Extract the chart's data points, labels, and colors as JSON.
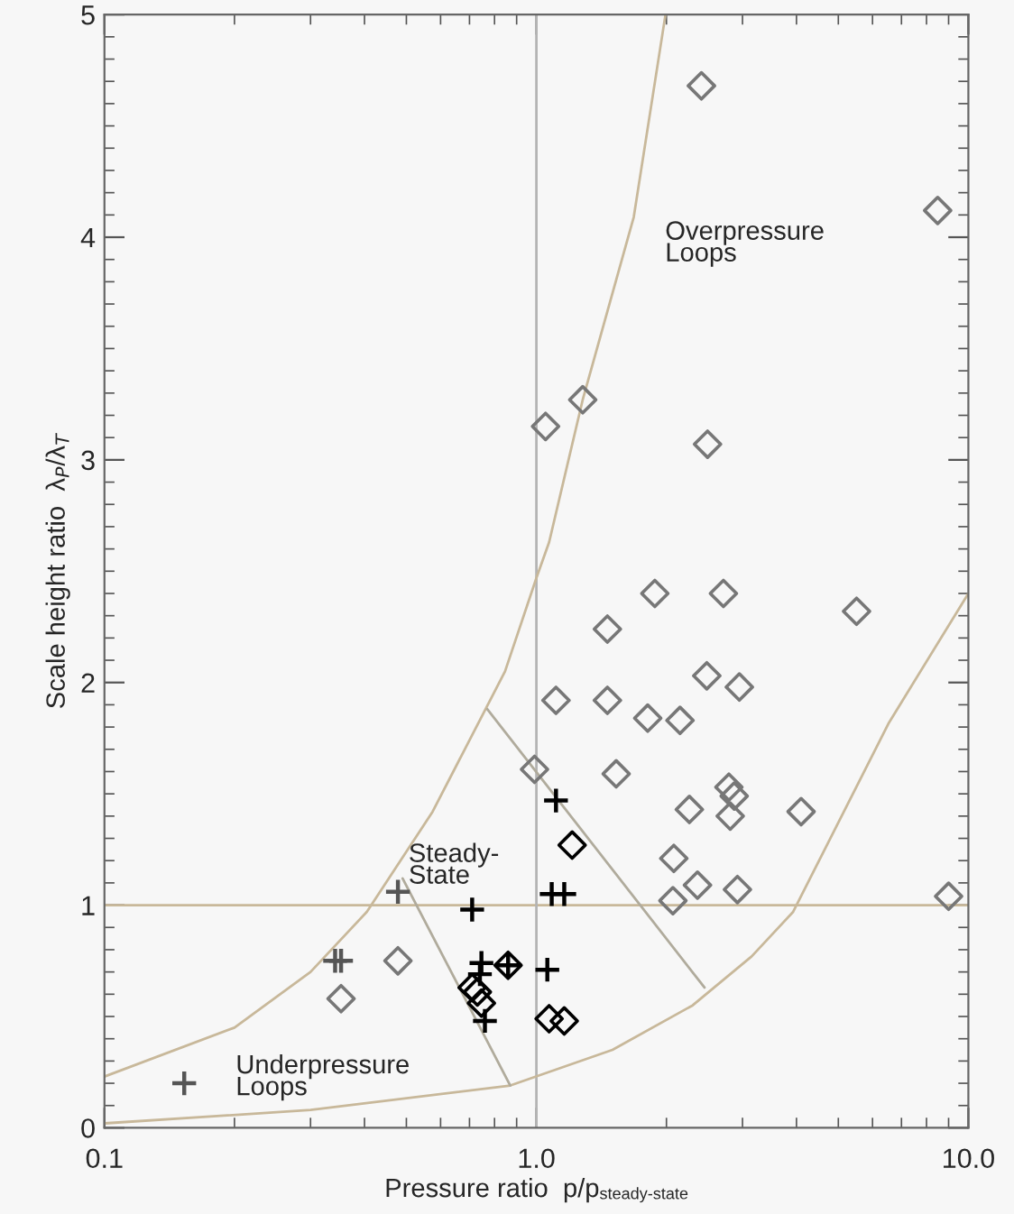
{
  "chart_data": {
    "type": "scatter",
    "xlabel": "Pressure ratio  p/p$_{steady-state}$",
    "ylabel": "Scale height ratio  λ$_{P}$/λ$_{T}$",
    "log": "x",
    "xlim": [
      0.1,
      10
    ],
    "xticks": [
      0.1,
      {
        "value": 1,
        "label": "1.0"
      },
      {
        "value": 10,
        "label": "10.0"
      }
    ],
    "ylim": [
      0,
      5
    ],
    "yticks": [
      0,
      1,
      2,
      3,
      4,
      5
    ],
    "grid": false,
    "legend": false,
    "series": [
      {
        "type": "scatter",
        "marker": "diamond",
        "color": "#777777",
        "x": [
          2.41,
          8.49,
          1.05,
          1.28,
          2.49,
          1.88,
          2.71,
          5.51,
          1.46,
          2.48,
          2.95,
          1.11,
          1.46,
          1.81,
          2.15,
          0.99,
          1.53,
          2.79,
          2.87,
          2.26,
          2.81,
          4.1,
          2.08,
          2.36,
          2.92,
          2.07,
          9.0,
          0.478,
          0.353
        ],
        "values": [
          4.68,
          4.12,
          3.15,
          3.27,
          3.07,
          2.4,
          2.4,
          2.32,
          2.24,
          2.03,
          1.98,
          1.92,
          1.92,
          1.84,
          1.83,
          1.61,
          1.59,
          1.53,
          1.49,
          1.43,
          1.4,
          1.42,
          1.21,
          1.09,
          1.07,
          1.02,
          1.04,
          0.75,
          0.58
        ]
      },
      {
        "type": "scatter",
        "marker": "diamond",
        "color": "#000000",
        "x": [
          1.21,
          0.86,
          0.71,
          0.73,
          0.746,
          1.07,
          1.16
        ],
        "values": [
          1.27,
          0.73,
          0.63,
          0.61,
          0.56,
          0.49,
          0.48
        ]
      },
      {
        "type": "scatter",
        "marker": "cross",
        "color": "#000000",
        "x": [
          1.11,
          1.085,
          1.16,
          0.71,
          0.746,
          0.74,
          0.76,
          1.06,
          0.86
        ],
        "values": [
          1.47,
          1.05,
          1.05,
          0.98,
          0.74,
          0.69,
          0.48,
          0.71,
          0.73
        ]
      },
      {
        "type": "scatter",
        "marker": "cross",
        "color": "#555555",
        "x": [
          0.478,
          0.342,
          0.353,
          0.153
        ],
        "values": [
          1.06,
          0.75,
          0.75,
          0.2
        ]
      },
      {
        "type": "line",
        "marker": "none",
        "color": "#c8b89a",
        "x": [
          0.1,
          0.2,
          0.3,
          0.405,
          0.575,
          0.846,
          1.0,
          1.07,
          1.28,
          1.68,
          1.99
        ],
        "values": [
          0.23,
          0.45,
          0.7,
          0.97,
          1.42,
          2.05,
          2.47,
          2.63,
          3.27,
          4.09,
          5.0
        ]
      },
      {
        "type": "line",
        "marker": "none",
        "color": "#c8b89a",
        "x": [
          0.1,
          0.3,
          0.87,
          1.5,
          2.3,
          3.15,
          3.93,
          6.55,
          10
        ],
        "values": [
          0.02,
          0.08,
          0.19,
          0.35,
          0.55,
          0.77,
          0.97,
          1.82,
          2.4
        ]
      },
      {
        "type": "line",
        "marker": "none",
        "color": "#b0ab9c",
        "x": [
          0.77,
          2.45
        ],
        "values": [
          1.88,
          0.63
        ]
      },
      {
        "type": "line",
        "marker": "none",
        "color": "#b0ab9c",
        "x": [
          0.49,
          0.87
        ],
        "values": [
          1.12,
          0.19
        ]
      }
    ],
    "ref_lines": [
      {
        "axis": "y",
        "value": 1,
        "color": "#c8b89a"
      },
      {
        "axis": "x",
        "value": 1,
        "color": "#b4b4b4"
      }
    ],
    "annotations": [
      "Overpressure\nLoops",
      "Steady-\nState",
      "Underpressure\nLoops"
    ]
  }
}
